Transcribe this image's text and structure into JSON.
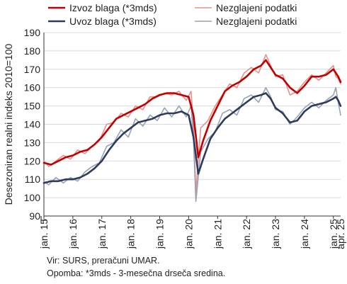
{
  "chart_data": {
    "type": "line",
    "ylabel": "Desezoniran realni indeks 2010=100",
    "ylim": [
      90,
      190
    ],
    "y_axis_break": true,
    "yticks": [
      90,
      100,
      110,
      120,
      130,
      140,
      150,
      160,
      170,
      180,
      190
    ],
    "x_range": [
      "2015-01",
      "2025-04"
    ],
    "xtick_labels": [
      "jan. 15",
      "jan. 16",
      "jan. 17",
      "jan. 18",
      "jan. 19",
      "jan. 20",
      "jan. 21",
      "jan. 22",
      "jan. 23",
      "jan. 24",
      "jan. 25"
    ],
    "x_end_label": "apr. 25",
    "grid": "horizontal",
    "legend_position": "top",
    "series": [
      {
        "name": "Izvoz blaga (*3mds)",
        "color": "#c00000",
        "width": 2.6,
        "points": [
          [
            "2015-01",
            119
          ],
          [
            "2015-04",
            118
          ],
          [
            "2015-07",
            120
          ],
          [
            "2015-10",
            122
          ],
          [
            "2016-01",
            123
          ],
          [
            "2016-04",
            125
          ],
          [
            "2016-07",
            126
          ],
          [
            "2016-10",
            129
          ],
          [
            "2017-01",
            133
          ],
          [
            "2017-04",
            138
          ],
          [
            "2017-07",
            143
          ],
          [
            "2017-10",
            145
          ],
          [
            "2018-01",
            147
          ],
          [
            "2018-04",
            149
          ],
          [
            "2018-07",
            151
          ],
          [
            "2018-10",
            154
          ],
          [
            "2019-01",
            156
          ],
          [
            "2019-04",
            157
          ],
          [
            "2019-07",
            157
          ],
          [
            "2019-10",
            156
          ],
          [
            "2020-01",
            155
          ],
          [
            "2020-03",
            145
          ],
          [
            "2020-05",
            122
          ],
          [
            "2020-07",
            131
          ],
          [
            "2020-10",
            142
          ],
          [
            "2021-01",
            150
          ],
          [
            "2021-04",
            158
          ],
          [
            "2021-07",
            161
          ],
          [
            "2021-10",
            163
          ],
          [
            "2022-01",
            166
          ],
          [
            "2022-04",
            170
          ],
          [
            "2022-07",
            172
          ],
          [
            "2022-09",
            175
          ],
          [
            "2022-11",
            171
          ],
          [
            "2023-01",
            167
          ],
          [
            "2023-04",
            165
          ],
          [
            "2023-07",
            160
          ],
          [
            "2023-10",
            157
          ],
          [
            "2024-01",
            161
          ],
          [
            "2024-04",
            166
          ],
          [
            "2024-07",
            166
          ],
          [
            "2024-10",
            167
          ],
          [
            "2025-01",
            170
          ],
          [
            "2025-02",
            168
          ],
          [
            "2025-03",
            166
          ],
          [
            "2025-04",
            163
          ]
        ]
      },
      {
        "name": "Nezglajeni podatki",
        "color": "#e8908d",
        "width": 1.6,
        "points": [
          [
            "2015-01",
            120
          ],
          [
            "2015-03",
            117
          ],
          [
            "2015-06",
            120
          ],
          [
            "2015-09",
            123
          ],
          [
            "2015-12",
            121
          ],
          [
            "2016-03",
            126
          ],
          [
            "2016-06",
            124
          ],
          [
            "2016-09",
            128
          ],
          [
            "2016-12",
            131
          ],
          [
            "2017-03",
            140
          ],
          [
            "2017-06",
            141
          ],
          [
            "2017-09",
            146
          ],
          [
            "2017-12",
            144
          ],
          [
            "2018-03",
            150
          ],
          [
            "2018-06",
            148
          ],
          [
            "2018-09",
            155
          ],
          [
            "2018-12",
            155
          ],
          [
            "2019-03",
            157
          ],
          [
            "2019-06",
            156
          ],
          [
            "2019-09",
            158
          ],
          [
            "2019-12",
            153
          ],
          [
            "2020-02",
            158
          ],
          [
            "2020-03",
            140
          ],
          [
            "2020-04",
            103
          ],
          [
            "2020-06",
            138
          ],
          [
            "2020-09",
            142
          ],
          [
            "2020-12",
            150
          ],
          [
            "2021-03",
            156
          ],
          [
            "2021-06",
            162
          ],
          [
            "2021-09",
            160
          ],
          [
            "2021-12",
            168
          ],
          [
            "2022-03",
            171
          ],
          [
            "2022-06",
            168
          ],
          [
            "2022-09",
            178
          ],
          [
            "2022-11",
            172
          ],
          [
            "2023-01",
            166
          ],
          [
            "2023-04",
            167
          ],
          [
            "2023-07",
            156
          ],
          [
            "2023-10",
            158
          ],
          [
            "2024-01",
            163
          ],
          [
            "2024-04",
            167
          ],
          [
            "2024-07",
            164
          ],
          [
            "2024-10",
            168
          ],
          [
            "2025-01",
            172
          ],
          [
            "2025-02",
            166
          ],
          [
            "2025-03",
            165
          ],
          [
            "2025-04",
            162
          ]
        ]
      },
      {
        "name": "Uvoz blaga (*3mds)",
        "color": "#2e3b5c",
        "width": 2.6,
        "points": [
          [
            "2015-01",
            108
          ],
          [
            "2015-04",
            109
          ],
          [
            "2015-07",
            109
          ],
          [
            "2015-10",
            110
          ],
          [
            "2016-01",
            110
          ],
          [
            "2016-04",
            111
          ],
          [
            "2016-07",
            113
          ],
          [
            "2016-10",
            116
          ],
          [
            "2017-01",
            120
          ],
          [
            "2017-04",
            126
          ],
          [
            "2017-07",
            131
          ],
          [
            "2017-10",
            135
          ],
          [
            "2018-01",
            138
          ],
          [
            "2018-04",
            141
          ],
          [
            "2018-07",
            142
          ],
          [
            "2018-10",
            143
          ],
          [
            "2019-01",
            145
          ],
          [
            "2019-04",
            146
          ],
          [
            "2019-07",
            146
          ],
          [
            "2019-10",
            147
          ],
          [
            "2020-01",
            145
          ],
          [
            "2020-03",
            133
          ],
          [
            "2020-05",
            113
          ],
          [
            "2020-07",
            121
          ],
          [
            "2020-10",
            132
          ],
          [
            "2021-01",
            138
          ],
          [
            "2021-04",
            143
          ],
          [
            "2021-07",
            146
          ],
          [
            "2021-10",
            149
          ],
          [
            "2022-01",
            152
          ],
          [
            "2022-04",
            155
          ],
          [
            "2022-07",
            156
          ],
          [
            "2022-09",
            157
          ],
          [
            "2022-11",
            154
          ],
          [
            "2023-01",
            149
          ],
          [
            "2023-04",
            146
          ],
          [
            "2023-07",
            141
          ],
          [
            "2023-10",
            142
          ],
          [
            "2024-01",
            147
          ],
          [
            "2024-04",
            150
          ],
          [
            "2024-07",
            151
          ],
          [
            "2024-10",
            152
          ],
          [
            "2025-01",
            154
          ],
          [
            "2025-02",
            155
          ],
          [
            "2025-03",
            153
          ],
          [
            "2025-04",
            150
          ]
        ]
      },
      {
        "name": "Nezglajeni podatki",
        "color": "#9aa2b3",
        "width": 1.6,
        "points": [
          [
            "2015-01",
            109
          ],
          [
            "2015-03",
            107
          ],
          [
            "2015-06",
            111
          ],
          [
            "2015-09",
            108
          ],
          [
            "2015-12",
            111
          ],
          [
            "2016-03",
            109
          ],
          [
            "2016-06",
            114
          ],
          [
            "2016-09",
            117
          ],
          [
            "2016-12",
            119
          ],
          [
            "2017-03",
            128
          ],
          [
            "2017-06",
            130
          ],
          [
            "2017-09",
            137
          ],
          [
            "2017-12",
            133
          ],
          [
            "2018-03",
            143
          ],
          [
            "2018-06",
            139
          ],
          [
            "2018-09",
            145
          ],
          [
            "2018-12",
            142
          ],
          [
            "2019-03",
            149
          ],
          [
            "2019-06",
            144
          ],
          [
            "2019-09",
            150
          ],
          [
            "2019-12",
            144
          ],
          [
            "2020-02",
            150
          ],
          [
            "2020-03",
            132
          ],
          [
            "2020-04",
            98
          ],
          [
            "2020-06",
            125
          ],
          [
            "2020-09",
            132
          ],
          [
            "2020-12",
            136
          ],
          [
            "2021-03",
            146
          ],
          [
            "2021-06",
            148
          ],
          [
            "2021-09",
            145
          ],
          [
            "2021-12",
            154
          ],
          [
            "2022-03",
            156
          ],
          [
            "2022-06",
            152
          ],
          [
            "2022-09",
            160
          ],
          [
            "2022-11",
            155
          ],
          [
            "2023-01",
            148
          ],
          [
            "2023-04",
            147
          ],
          [
            "2023-07",
            140
          ],
          [
            "2023-10",
            144
          ],
          [
            "2024-01",
            149
          ],
          [
            "2024-04",
            152
          ],
          [
            "2024-07",
            149
          ],
          [
            "2024-10",
            153
          ],
          [
            "2025-01",
            156
          ],
          [
            "2025-02",
            160
          ],
          [
            "2025-03",
            152
          ],
          [
            "2025-04",
            145
          ]
        ]
      }
    ]
  },
  "notes": {
    "source": "Vir: SURS, preračuni UMAR.",
    "remark": "Opomba: *3mds - 3-mesečna drseča sredina."
  }
}
